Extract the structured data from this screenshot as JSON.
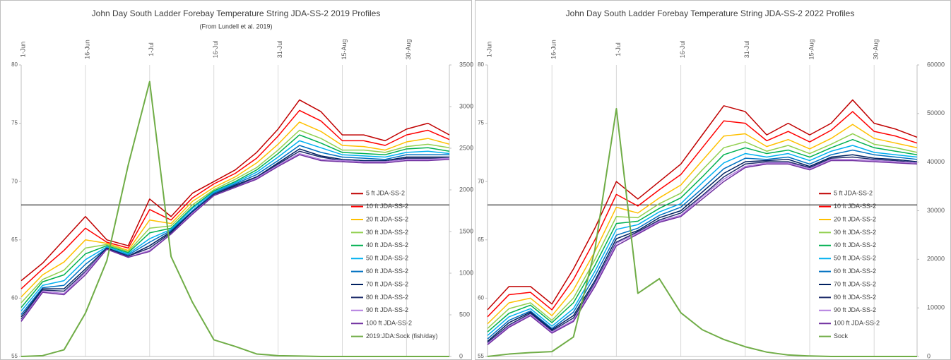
{
  "chart_data": [
    {
      "type": "line",
      "title": "John Day South Ladder Forebay Temperature String JDA-SS-2 2019 Profiles",
      "subtitle": "(From Lundell et al. 2019)",
      "x": [
        "1-Jun",
        null,
        null,
        "16-Jun",
        null,
        null,
        "1-Jul",
        null,
        null,
        "16-Jul",
        null,
        null,
        "31-Jul",
        null,
        null,
        "15-Aug",
        null,
        null,
        "30-Aug",
        null,
        null
      ],
      "ylim": [
        55,
        80
      ],
      "yticks": [
        55,
        60,
        65,
        70,
        75,
        80
      ],
      "y2lim": [
        0,
        3500
      ],
      "y2ticks": [
        0,
        500,
        1000,
        1500,
        2000,
        2500,
        3000,
        3500
      ],
      "hline": 68,
      "grid": true,
      "legend": "right",
      "series": [
        {
          "name": "5 ft JDA-SS-2",
          "color": "#c00000",
          "values": [
            61.5,
            63,
            65,
            67,
            65,
            64.5,
            68.5,
            67,
            69,
            70,
            71,
            72.5,
            74.5,
            77,
            76,
            74,
            74,
            73.5,
            74.5,
            75,
            74
          ]
        },
        {
          "name": "10 ft JDA-SS-2",
          "color": "#ff0000",
          "values": [
            60.8,
            62.5,
            64.1,
            66,
            64.8,
            64.3,
            67.6,
            66.7,
            68.6,
            69.8,
            70.7,
            72,
            73.9,
            76.1,
            75.2,
            73.5,
            73.5,
            73.1,
            74,
            74.4,
            73.6
          ]
        },
        {
          "name": "20 ft JDA-SS-2",
          "color": "#ffc000",
          "values": [
            60.1,
            62,
            63.1,
            65,
            64.7,
            64.1,
            66.7,
            66.4,
            68.3,
            69.5,
            70.4,
            71.6,
            73.2,
            75.1,
            74.3,
            73.1,
            73,
            72.7,
            73.4,
            73.7,
            73.2
          ]
        },
        {
          "name": "30 ft JDA-SS-2",
          "color": "#92d050",
          "values": [
            59.6,
            61.6,
            62.4,
            64.3,
            64.6,
            64,
            66,
            66.2,
            68,
            69.3,
            70.2,
            71.2,
            72.7,
            74.4,
            73.7,
            72.7,
            72.7,
            72.5,
            73,
            73.2,
            72.9
          ]
        },
        {
          "name": "40 ft JDA-SS-2",
          "color": "#00b050",
          "values": [
            59.2,
            61.4,
            62,
            63.8,
            64.5,
            63.9,
            65.6,
            66,
            67.8,
            69.2,
            70,
            71,
            72.4,
            74,
            73.3,
            72.5,
            72.4,
            72.3,
            72.8,
            72.9,
            72.6
          ]
        },
        {
          "name": "50 ft JDA-SS-2",
          "color": "#00b0f0",
          "values": [
            58.9,
            61.1,
            61.5,
            63.3,
            64.4,
            63.8,
            65.1,
            65.9,
            67.7,
            69.1,
            69.9,
            70.8,
            72.1,
            73.5,
            72.9,
            72.3,
            72.2,
            72.1,
            72.5,
            72.6,
            72.4
          ]
        },
        {
          "name": "60 ft JDA-SS-2",
          "color": "#0070c0",
          "values": [
            58.6,
            60.9,
            61.1,
            62.9,
            64.3,
            63.7,
            64.8,
            65.8,
            67.5,
            69,
            69.8,
            70.6,
            71.8,
            73.1,
            72.5,
            72.1,
            72,
            71.9,
            72.3,
            72.3,
            72.3
          ]
        },
        {
          "name": "70 ft JDA-SS-2",
          "color": "#002060",
          "values": [
            58.4,
            60.8,
            60.8,
            62.5,
            64.3,
            63.6,
            64.5,
            65.7,
            67.4,
            68.9,
            69.7,
            70.4,
            71.6,
            72.8,
            72.2,
            71.9,
            71.8,
            71.8,
            72.1,
            72.1,
            72.1
          ]
        },
        {
          "name": "80 ft JDA-SS-2",
          "color": "#1f2d6b",
          "values": [
            58.2,
            60.7,
            60.6,
            62.3,
            64.2,
            63.6,
            64.3,
            65.6,
            67.3,
            68.9,
            69.6,
            70.3,
            71.5,
            72.6,
            72.1,
            71.8,
            71.7,
            71.7,
            72,
            72,
            72
          ]
        },
        {
          "name": "90 ft JDA-SS-2",
          "color": "#b47fe0",
          "values": [
            58.1,
            60.6,
            60.4,
            62.2,
            64.2,
            63.5,
            64.1,
            65.5,
            67.3,
            68.8,
            69.5,
            70.3,
            71.4,
            72.4,
            71.9,
            71.8,
            71.7,
            71.7,
            71.9,
            71.9,
            72
          ]
        },
        {
          "name": "100 ft JDA-SS-2",
          "color": "#7030a0",
          "values": [
            58,
            60.5,
            60.3,
            62,
            64.2,
            63.5,
            64,
            65.5,
            67.2,
            68.8,
            69.5,
            70.2,
            71.3,
            72.3,
            71.8,
            71.7,
            71.6,
            71.6,
            71.8,
            71.8,
            71.9
          ]
        },
        {
          "name": "2019:JDA:Sock (fish/day)",
          "color": "#70ad47",
          "axis": "y2",
          "values": [
            0,
            10,
            80,
            520,
            1150,
            2300,
            3300,
            1200,
            650,
            200,
            120,
            30,
            10,
            5,
            0,
            0,
            0,
            0,
            0,
            0,
            0
          ]
        }
      ]
    },
    {
      "type": "line",
      "title": "John Day South Ladder Forebay Temperature String JDA-SS-2 2022 Profiles",
      "x": [
        "1-Jun",
        null,
        null,
        "16-Jun",
        null,
        null,
        "1-Jul",
        null,
        null,
        "16-Jul",
        null,
        null,
        "31-Jul",
        null,
        null,
        "15-Aug",
        null,
        null,
        "30-Aug",
        null,
        null
      ],
      "ylim": [
        55,
        80
      ],
      "yticks": [
        55,
        60,
        65,
        70,
        75,
        80
      ],
      "y2lim": [
        0,
        60000
      ],
      "y2ticks": [
        0,
        10000,
        20000,
        30000,
        40000,
        50000,
        60000
      ],
      "hline": 68,
      "grid": true,
      "legend": "right",
      "series": [
        {
          "name": "5 ft JDA-SS-2",
          "color": "#c00000",
          "values": [
            59,
            61,
            61,
            59.5,
            62.5,
            66,
            70,
            68.5,
            70,
            71.5,
            74,
            76.5,
            76,
            74,
            75,
            74,
            75,
            77,
            75,
            74.5,
            73.8
          ]
        },
        {
          "name": "10 ft JDA-SS-2",
          "color": "#ff0000",
          "values": [
            58.4,
            60.3,
            60.5,
            59,
            61.6,
            65,
            68.9,
            67.9,
            69.3,
            70.6,
            72.9,
            75.2,
            75,
            73.5,
            74.3,
            73.4,
            74.4,
            76,
            74.3,
            73.9,
            73.3
          ]
        },
        {
          "name": "20 ft JDA-SS-2",
          "color": "#ffc000",
          "values": [
            57.8,
            59.6,
            60,
            58.5,
            60.7,
            64,
            67.8,
            67.3,
            68.6,
            69.7,
            71.8,
            73.9,
            74.1,
            73,
            73.6,
            72.8,
            73.7,
            74.9,
            73.7,
            73.3,
            72.9
          ]
        },
        {
          "name": "30 ft JDA-SS-2",
          "color": "#92d050",
          "values": [
            57.4,
            59.1,
            59.6,
            58.1,
            60,
            63.3,
            67,
            66.9,
            68.1,
            69,
            71,
            72.9,
            73.4,
            72.6,
            73.1,
            72.4,
            73.2,
            74.1,
            73.2,
            72.9,
            72.5
          ]
        },
        {
          "name": "40 ft JDA-SS-2",
          "color": "#00b050",
          "values": [
            57.1,
            58.7,
            59.4,
            57.9,
            59.6,
            62.8,
            66.4,
            66.6,
            67.7,
            68.6,
            70.4,
            72.3,
            72.9,
            72.4,
            72.7,
            72.1,
            72.9,
            73.6,
            72.9,
            72.6,
            72.3
          ]
        },
        {
          "name": "50 ft JDA-SS-2",
          "color": "#00b0f0",
          "values": [
            56.8,
            58.4,
            59.1,
            57.6,
            59.1,
            62.3,
            65.9,
            66.3,
            67.4,
            68.1,
            69.9,
            71.6,
            72.4,
            72.1,
            72.4,
            71.8,
            72.6,
            73.1,
            72.5,
            72.3,
            72.1
          ]
        },
        {
          "name": "60 ft JDA-SS-2",
          "color": "#0070c0",
          "values": [
            56.5,
            58.1,
            58.9,
            57.4,
            58.8,
            61.9,
            65.4,
            66,
            67.1,
            67.8,
            69.4,
            71.1,
            72,
            71.9,
            72.1,
            71.5,
            72.3,
            72.7,
            72.3,
            72.1,
            71.9
          ]
        },
        {
          "name": "70 ft JDA-SS-2",
          "color": "#002060",
          "values": [
            56.3,
            57.9,
            58.8,
            57.3,
            58.5,
            61.5,
            65.1,
            65.8,
            66.9,
            67.5,
            69.1,
            70.7,
            71.7,
            71.8,
            71.9,
            71.3,
            72.1,
            72.3,
            72,
            71.9,
            71.7
          ]
        },
        {
          "name": "80 ft JDA-SS-2",
          "color": "#1f2d6b",
          "values": [
            56.2,
            57.7,
            58.7,
            57.2,
            58.3,
            61.3,
            64.8,
            65.7,
            66.7,
            67.3,
            68.8,
            70.4,
            71.5,
            71.7,
            71.7,
            71.2,
            72,
            72.1,
            71.9,
            71.8,
            71.6
          ]
        },
        {
          "name": "90 ft JDA-SS-2",
          "color": "#b47fe0",
          "values": [
            56.1,
            57.6,
            58.6,
            57.1,
            58.1,
            61.2,
            64.7,
            65.6,
            66.6,
            67.1,
            68.7,
            70.2,
            71.3,
            71.6,
            71.6,
            71.1,
            71.9,
            71.9,
            71.8,
            71.7,
            71.6
          ]
        },
        {
          "name": "100 ft JDA-SS-2",
          "color": "#7030a0",
          "values": [
            56,
            57.5,
            58.5,
            57,
            58,
            61,
            64.5,
            65.5,
            66.5,
            67,
            68.5,
            70,
            71.2,
            71.5,
            71.5,
            71,
            71.8,
            71.8,
            71.7,
            71.6,
            71.5
          ]
        },
        {
          "name": "Sock",
          "color": "#70ad47",
          "axis": "y2",
          "values": [
            0,
            500,
            800,
            1000,
            4000,
            22000,
            51000,
            13000,
            16000,
            9000,
            5500,
            3500,
            2000,
            900,
            300,
            100,
            0,
            0,
            0,
            0,
            0
          ]
        }
      ]
    }
  ]
}
